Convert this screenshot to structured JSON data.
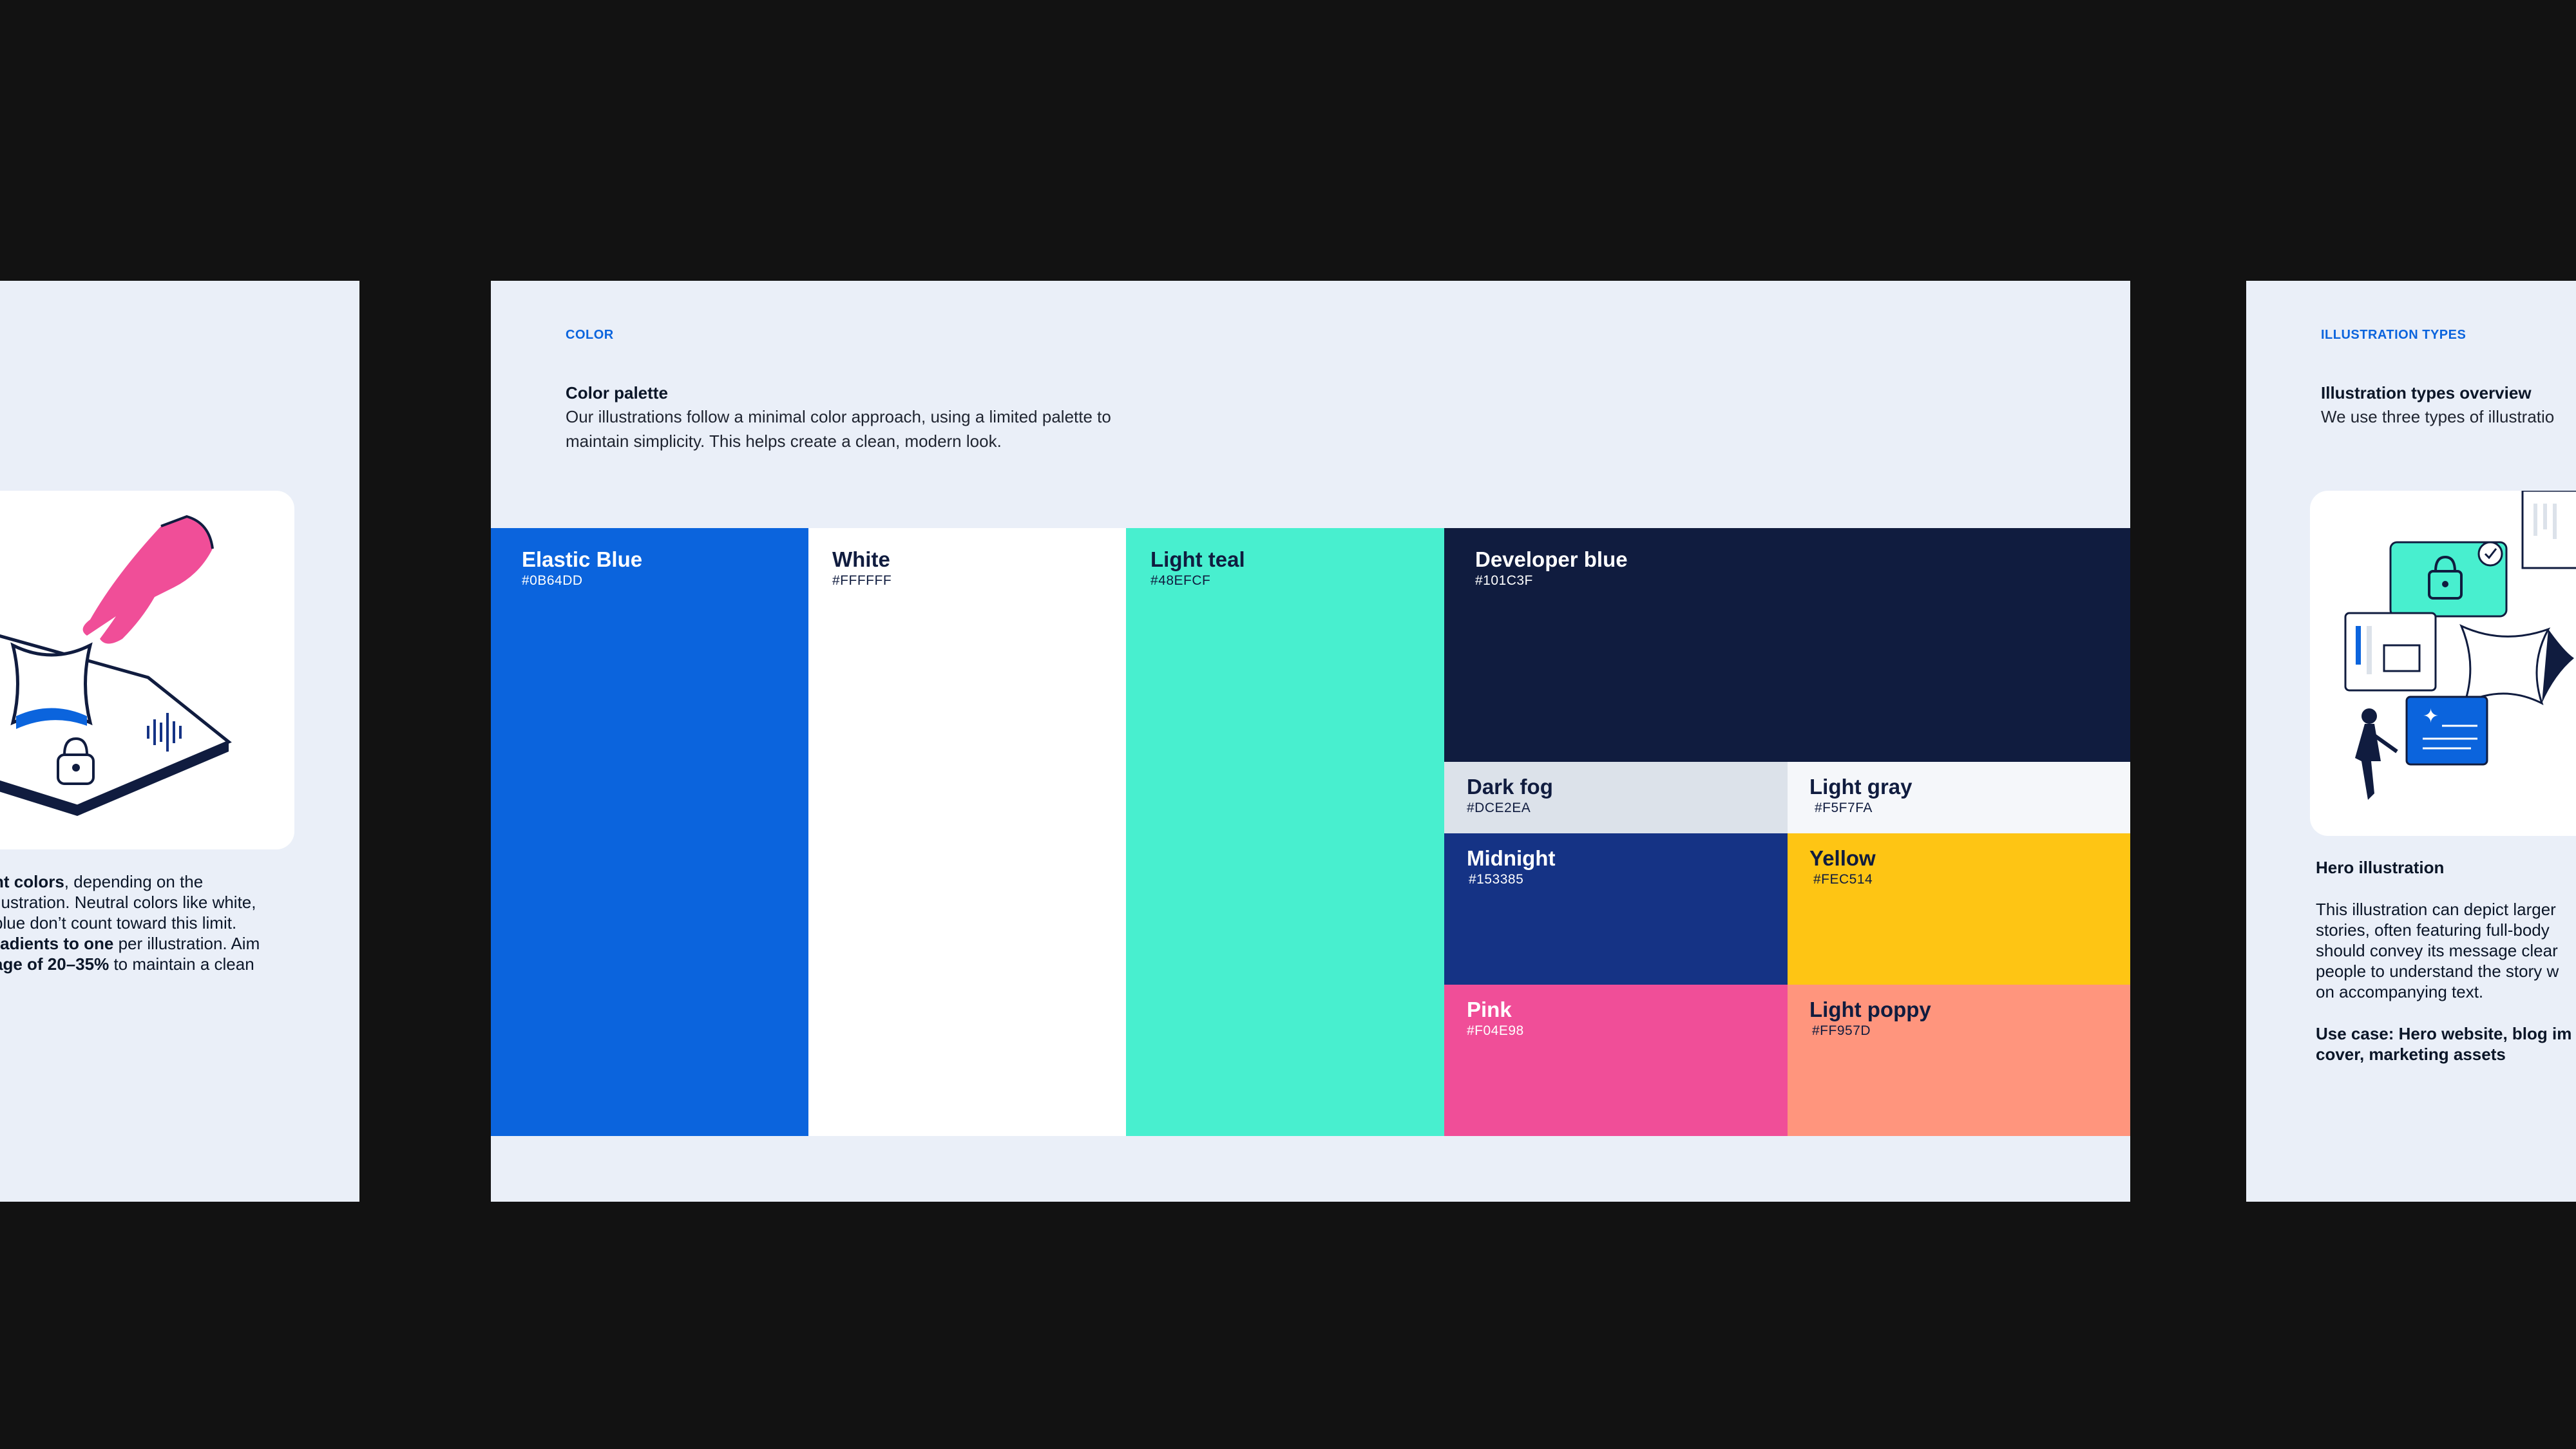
{
  "left_slide": {
    "body_lines": [
      {
        "parts": [
          {
            "text": "nt colors",
            "bold": true
          },
          {
            "text": ", depending on the",
            "bold": false
          }
        ]
      },
      {
        "parts": [
          {
            "text": "llustration. Neutral colors like white,",
            "bold": false
          }
        ]
      },
      {
        "parts": [
          {
            "text": "blue don’t count toward this limit.",
            "bold": false
          }
        ]
      },
      {
        "parts": [
          {
            "text": "radients to one",
            "bold": true
          },
          {
            "text": " per illustration. Aim",
            "bold": false
          }
        ]
      },
      {
        "parts": [
          {
            "text": "age of 20–35%",
            "bold": true
          },
          {
            "text": " to maintain a clean",
            "bold": false
          }
        ]
      }
    ],
    "illustration_icon": "hand-tablet-lock-illustration"
  },
  "center_slide": {
    "eyebrow": "COLOR",
    "title": "Color palette",
    "body_line1": "Our illustrations follow a minimal color approach, using a limited palette to",
    "body_line2": "maintain simplicity. This helps create a clean, modern look.",
    "swatches": [
      {
        "id": "elastic-blue",
        "name": "Elastic Blue",
        "hex": "#0B64DD",
        "text_color": "#FFFFFF"
      },
      {
        "id": "white",
        "name": "White",
        "hex": "#FFFFFF",
        "text_color": "#101C3F"
      },
      {
        "id": "light-teal",
        "name": "Light teal",
        "hex": "#48EFCF",
        "text_color": "#101C3F"
      },
      {
        "id": "developer-blue",
        "name": "Developer blue",
        "hex": "#101C3F",
        "text_color": "#FFFFFF"
      },
      {
        "id": "dark-fog",
        "name": "Dark fog",
        "hex": "#DCE2EA",
        "text_color": "#101C3F"
      },
      {
        "id": "light-gray",
        "name": "Light gray",
        "hex": "#F5F7FA",
        "text_color": "#101C3F"
      },
      {
        "id": "midnight",
        "name": "Midnight",
        "hex": "#153385",
        "text_color": "#FFFFFF"
      },
      {
        "id": "yellow",
        "name": "Yellow",
        "hex": "#FEC514",
        "text_color": "#101C3F"
      },
      {
        "id": "pink",
        "name": "Pink",
        "hex": "#F04E98",
        "text_color": "#FFFFFF"
      },
      {
        "id": "light-poppy",
        "name": "Light poppy",
        "hex": "#FF957D",
        "text_color": "#101C3F"
      }
    ]
  },
  "right_slide": {
    "eyebrow": "ILLUSTRATION TYPES",
    "title": "Illustration types overview",
    "body": "We use three types of illustratio",
    "subhead": "Hero illustration",
    "desc_lines": [
      "This illustration can depict larger",
      "stories, often featuring full-body",
      "should convey its message clear",
      "people to understand the story w",
      "on accompanying text."
    ],
    "usecase_line1": "Use case: Hero website, blog im",
    "usecase_line2": "cover, marketing assets",
    "illustration_icon": "security-collage-illustration"
  }
}
